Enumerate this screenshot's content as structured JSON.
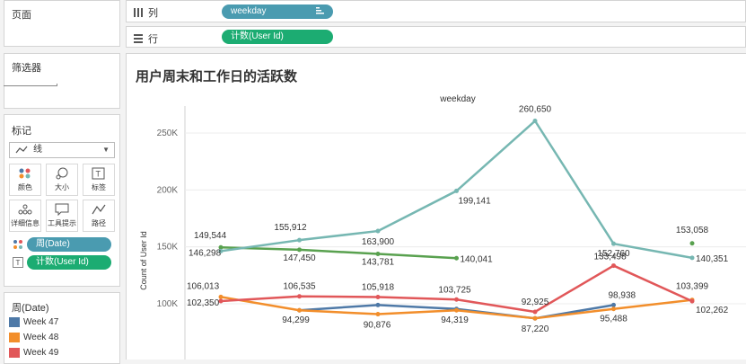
{
  "pages_panel": {
    "title": "页面"
  },
  "filters_panel": {
    "title": "筛选器"
  },
  "marks_panel": {
    "title": "标记",
    "mark_type": "线",
    "buttons": [
      {
        "label": "颜色",
        "icon": "color-dots-icon"
      },
      {
        "label": "大小",
        "icon": "size-icon"
      },
      {
        "label": "标签",
        "icon": "label-icon"
      },
      {
        "label": "详细信息",
        "icon": "detail-icon"
      },
      {
        "label": "工具提示",
        "icon": "tooltip-icon"
      },
      {
        "label": "路径",
        "icon": "path-icon"
      }
    ],
    "fields": [
      {
        "label": "周(Date)",
        "color": "#4a9bb0",
        "icon": "color-dots-icon"
      },
      {
        "label": "计数(User Id)",
        "color": "#1cac72",
        "icon": "label-icon",
        "icon_text": "T"
      }
    ]
  },
  "legend": {
    "title": "周(Date)",
    "items": [
      {
        "label": "Week 47",
        "color": "#4e79a7"
      },
      {
        "label": "Week 48",
        "color": "#f28e2b"
      },
      {
        "label": "Week 49",
        "color": "#e15759"
      }
    ]
  },
  "shelves": {
    "columns": {
      "label": "列",
      "pill": "weekday"
    },
    "rows": {
      "label": "行",
      "pill": "计数(User Id)"
    }
  },
  "chart": {
    "title": "用户周末和工作日的活跃数"
  },
  "chart_data": {
    "type": "line",
    "title": "用户周末和工作日的活跃数",
    "header": "weekday",
    "ylabel": "Count of User Id",
    "ylim": [
      50000,
      275000
    ],
    "y_ticks": [
      {
        "value": 100000,
        "label": "100K"
      },
      {
        "value": 150000,
        "label": "150K"
      },
      {
        "value": 200000,
        "label": "200K"
      },
      {
        "value": 250000,
        "label": "250K"
      }
    ],
    "x": [
      0,
      1,
      2,
      3,
      4,
      5,
      6,
      7
    ],
    "series": [
      {
        "name": "Week 47",
        "color": "#4e79a7",
        "values": [
          null,
          94299,
          98938,
          95488,
          87220,
          98938,
          null,
          null
        ],
        "labels": [
          null,
          null,
          null,
          null,
          null,
          "98,938",
          null,
          null
        ]
      },
      {
        "name": "Week 48",
        "color": "#f28e2b",
        "values": [
          106013,
          94299,
          90876,
          94319,
          87220,
          95488,
          103399,
          null
        ],
        "labels": [
          "106,013",
          "94,299",
          "90,876",
          "94,319",
          "87,220",
          "95,488",
          "103,399",
          null
        ]
      },
      {
        "name": "Week 49",
        "color": "#e15759",
        "values": [
          102350,
          106535,
          105918,
          103725,
          92925,
          133498,
          102262,
          null
        ],
        "labels": [
          "102,350",
          "106,535",
          "105,918",
          "103,725",
          "92,925",
          "133,498",
          "102,262",
          null
        ]
      },
      {
        "name": "",
        "color": "#59a14f",
        "values": [
          149544,
          147450,
          143781,
          140041,
          null,
          null,
          153058,
          null
        ],
        "labels": [
          "149,544",
          "147,450",
          "143,781",
          "140,041",
          null,
          null,
          "153,058",
          null
        ]
      },
      {
        "name": "",
        "color": "#76b7b2",
        "values": [
          146298,
          155912,
          163900,
          199141,
          260650,
          152760,
          140351,
          null
        ],
        "labels": [
          "146,298",
          "155,912",
          "163,900",
          "199,141",
          "260,650",
          "152,760",
          "140,351",
          null
        ]
      }
    ]
  }
}
